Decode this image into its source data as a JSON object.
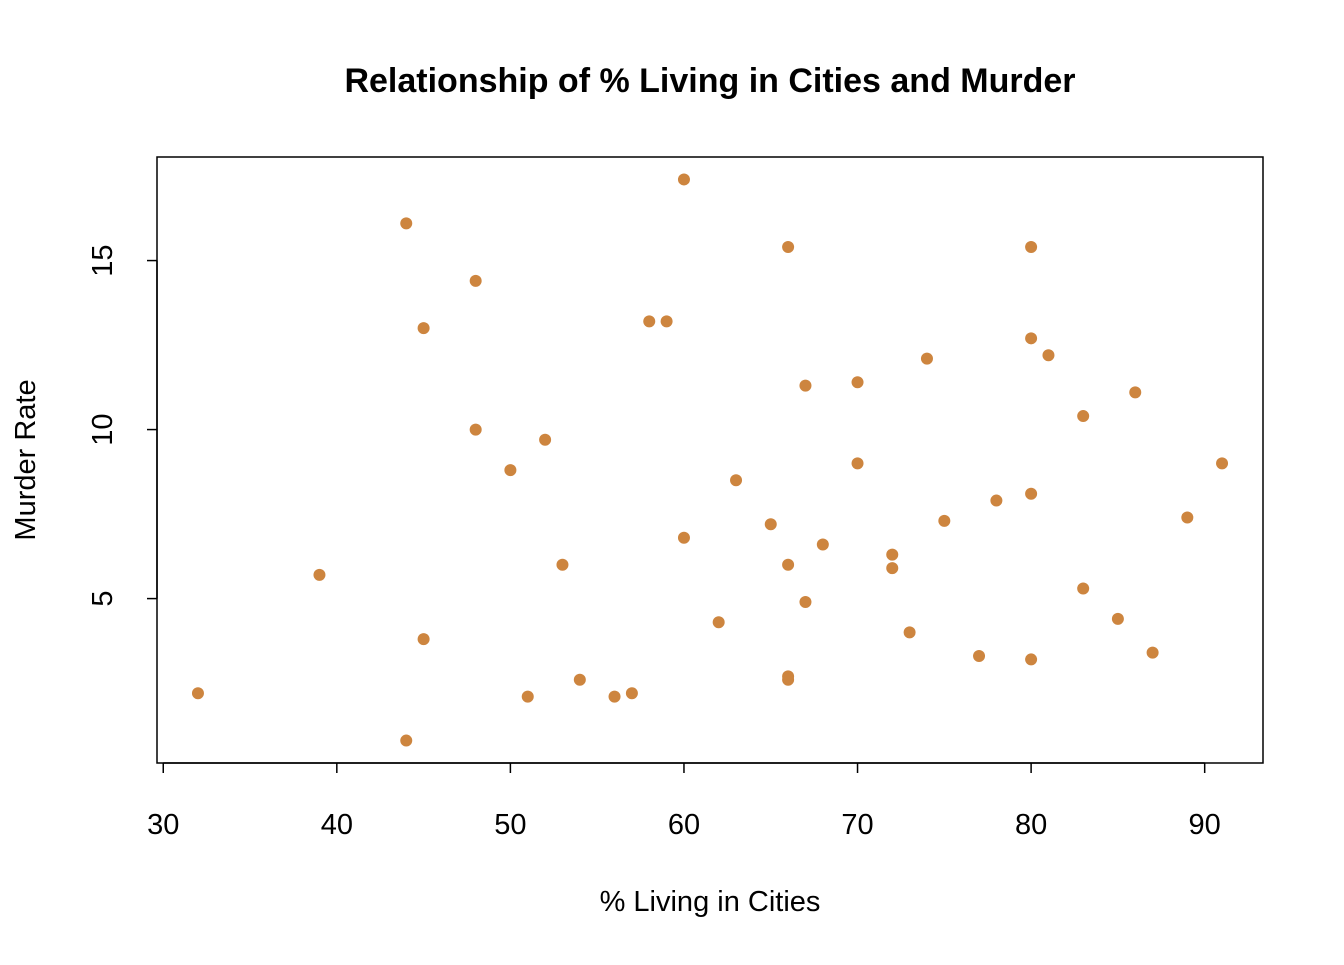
{
  "chart_data": {
    "type": "scatter",
    "title": "Relationship of % Living in Cities and Murder",
    "xlabel": "% Living in Cities",
    "ylabel": "Murder Rate",
    "xlim": [
      29.64,
      93.36
    ],
    "ylim": [
      0.136,
      18.064
    ],
    "xticks": [
      30,
      40,
      50,
      60,
      70,
      80,
      90
    ],
    "yticks": [
      5,
      10,
      15
    ],
    "grid": false,
    "point_color": "#CD853F",
    "x": [
      58,
      48,
      80,
      50,
      91,
      78,
      77,
      72,
      80,
      60,
      83,
      54,
      83,
      65,
      57,
      66,
      52,
      66,
      51,
      67,
      85,
      74,
      66,
      44,
      70,
      53,
      62,
      81,
      56,
      89,
      70,
      86,
      45,
      44,
      75,
      68,
      67,
      72,
      87,
      48,
      45,
      59,
      80,
      80,
      32,
      63,
      73,
      39,
      66,
      60
    ],
    "y": [
      13.2,
      10.0,
      8.1,
      8.8,
      9.0,
      7.9,
      3.3,
      5.9,
      15.4,
      17.4,
      5.3,
      2.6,
      10.4,
      7.2,
      2.2,
      6.0,
      9.7,
      15.4,
      2.1,
      11.3,
      4.4,
      12.1,
      2.7,
      16.1,
      9.0,
      6.0,
      4.3,
      12.2,
      2.1,
      7.4,
      11.4,
      11.1,
      13.0,
      0.8,
      7.3,
      6.6,
      4.9,
      6.3,
      3.4,
      14.4,
      3.8,
      13.2,
      12.7,
      3.2,
      2.2,
      8.5,
      4.0,
      5.7,
      2.6,
      6.8
    ]
  }
}
